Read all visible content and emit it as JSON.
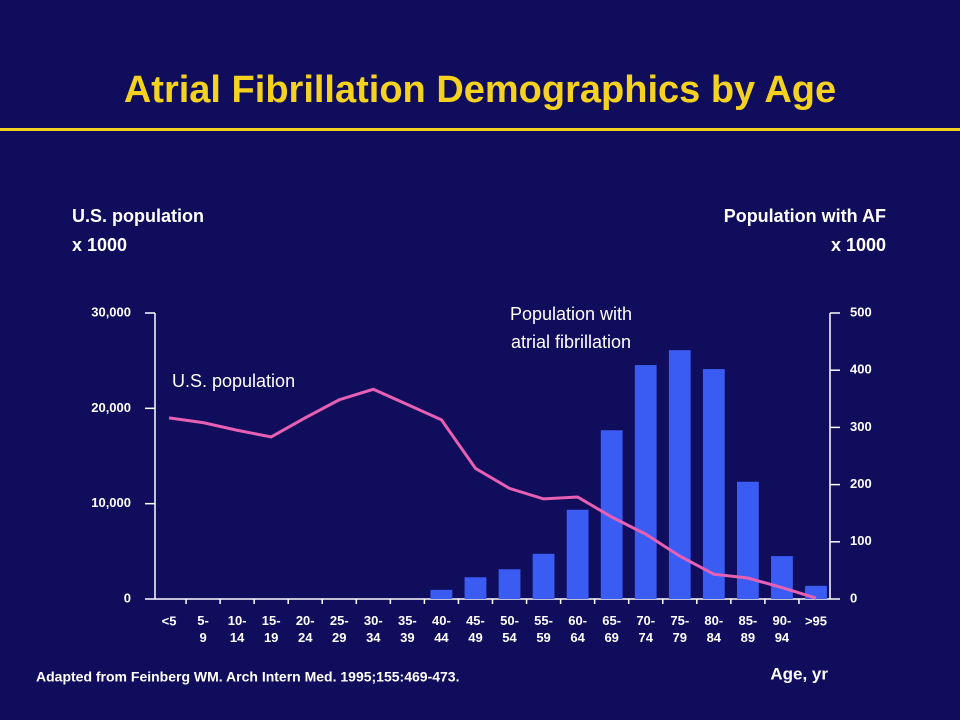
{
  "chart_data": {
    "type": "bar-line",
    "title": "Atrial Fibrillation Demographics by Age",
    "y_label": [
      "U.S. population",
      "x 1000"
    ],
    "y2_label": [
      "Population with AF",
      "x 1000"
    ],
    "x_label": "Age, yr",
    "annotations": [
      "U.S. population",
      "Population with",
      "atrial fibrillation"
    ],
    "source": "Adapted from Feinberg WM. Arch Intern Med. 1995;155:469-473.",
    "categories": [
      "<5",
      "5-9",
      "10-14",
      "15-19",
      "20-24",
      "25-29",
      "30-34",
      "35-39",
      "40-44",
      "45-49",
      "50-54",
      "55-59",
      "60-64",
      "65-69",
      "70-74",
      "75-79",
      "80-84",
      "85-89",
      "90-94",
      ">95"
    ],
    "series": [
      {
        "name": "Population with atrial fibrillation",
        "type": "bar",
        "axis": "y2",
        "color": "#3b5cf2",
        "values": [
          0,
          0,
          0,
          0,
          0,
          0,
          0,
          0,
          16,
          38,
          52,
          79,
          156,
          295,
          409,
          435,
          402,
          205,
          75,
          23
        ]
      },
      {
        "name": "U.S. population",
        "type": "line",
        "axis": "y",
        "color": "#e860b4",
        "values": [
          19000,
          18500,
          17700,
          17000,
          19000,
          20900,
          22000,
          20400,
          18800,
          13700,
          11600,
          10500,
          10700,
          8600,
          6800,
          4500,
          2600,
          2200,
          1200,
          100
        ]
      }
    ],
    "ylim": [
      0,
      30000
    ],
    "yticks": [
      0,
      {
        "value": 10000,
        "label": "10,000"
      },
      {
        "value": 20000,
        "label": "20,000"
      },
      {
        "value": 30000,
        "label": "30,000"
      }
    ],
    "y2lim": [
      0,
      500
    ],
    "y2ticks": [
      0,
      100,
      200,
      300,
      400,
      500
    ]
  }
}
